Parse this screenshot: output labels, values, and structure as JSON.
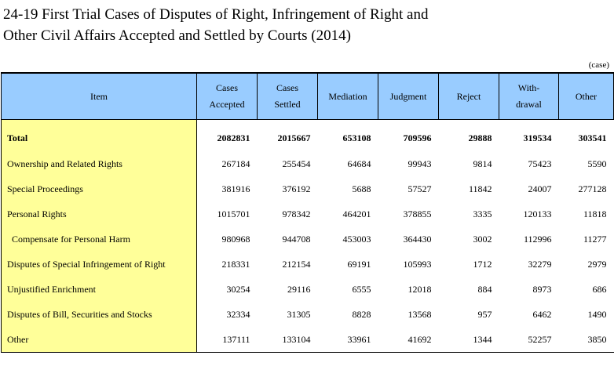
{
  "title_line1": "24-19  First Trial Cases of Disputes of Right, Infringement of Right and",
  "title_line2": "Other Civil Affairs Accepted and Settled by Courts (2014)",
  "unit": "(case)",
  "headers": {
    "item": "Item",
    "accepted_1": "Cases",
    "accepted_2": "Accepted",
    "settled_1": "Cases",
    "settled_2": "Settled",
    "mediation": "Mediation",
    "judgment": "Judgment",
    "reject": "Reject",
    "withdrawal_1": "With-",
    "withdrawal_2": "drawal",
    "other": "Other"
  },
  "rows": [
    {
      "item": "Total",
      "accepted": "2082831",
      "settled": "2015667",
      "mediation": "653108",
      "judgment": "709596",
      "reject": "29888",
      "withdrawal": "319534",
      "other": "303541"
    },
    {
      "item": "Ownership and Related Rights",
      "accepted": "267184",
      "settled": "255454",
      "mediation": "64684",
      "judgment": "99943",
      "reject": "9814",
      "withdrawal": "75423",
      "other": "5590"
    },
    {
      "item": "Special Proceedings",
      "accepted": "381916",
      "settled": "376192",
      "mediation": "5688",
      "judgment": "57527",
      "reject": "11842",
      "withdrawal": "24007",
      "other": "277128"
    },
    {
      "item": "Personal Rights",
      "accepted": "1015701",
      "settled": "978342",
      "mediation": "464201",
      "judgment": "378855",
      "reject": "3335",
      "withdrawal": "120133",
      "other": "11818"
    },
    {
      "item": "Compensate for Personal Harm",
      "accepted": "980968",
      "settled": "944708",
      "mediation": "453003",
      "judgment": "364430",
      "reject": "3002",
      "withdrawal": "112996",
      "other": "11277"
    },
    {
      "item": "Disputes of Special Infringement of Right",
      "accepted": "218331",
      "settled": "212154",
      "mediation": "69191",
      "judgment": "105993",
      "reject": "1712",
      "withdrawal": "32279",
      "other": "2979"
    },
    {
      "item": "Unjustified Enrichment",
      "accepted": "30254",
      "settled": "29116",
      "mediation": "6555",
      "judgment": "12018",
      "reject": "884",
      "withdrawal": "8973",
      "other": "686"
    },
    {
      "item": "Disputes of Bill, Securities and Stocks",
      "accepted": "32334",
      "settled": "31305",
      "mediation": "8828",
      "judgment": "13568",
      "reject": "957",
      "withdrawal": "6462",
      "other": "1490"
    },
    {
      "item": "Other",
      "accepted": "137111",
      "settled": "133104",
      "mediation": "33961",
      "judgment": "41692",
      "reject": "1344",
      "withdrawal": "52257",
      "other": "3850"
    }
  ],
  "colors": {
    "header_bg": "#99ccff",
    "item_col_bg": "#ffff99"
  }
}
